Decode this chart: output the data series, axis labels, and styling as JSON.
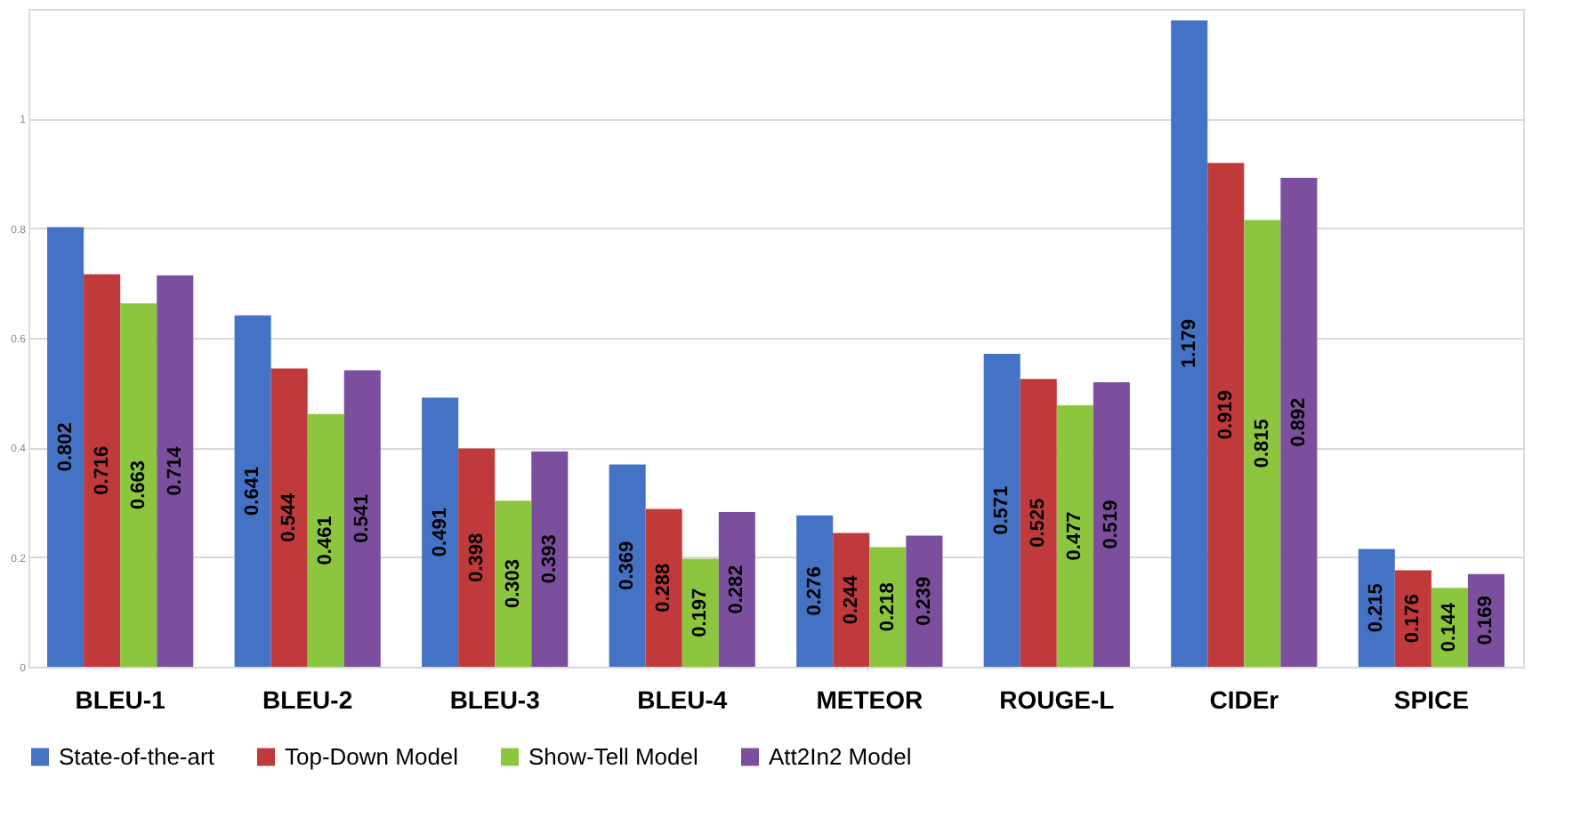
{
  "chart_data": {
    "type": "bar",
    "categories": [
      "BLEU-1",
      "BLEU-2",
      "BLEU-3",
      "BLEU-4",
      "METEOR",
      "ROUGE-L",
      "CIDEr",
      "SPICE"
    ],
    "series": [
      {
        "name": "State-of-the-art",
        "color": "#4472c4",
        "values": [
          0.802,
          0.641,
          0.491,
          0.369,
          0.276,
          0.571,
          1.179,
          0.215
        ]
      },
      {
        "name": "Top-Down Model",
        "color": "#c0393b",
        "values": [
          0.716,
          0.544,
          0.398,
          0.288,
          0.244,
          0.525,
          0.919,
          0.176
        ]
      },
      {
        "name": "Show-Tell Model",
        "color": "#8cc63f",
        "values": [
          0.663,
          0.461,
          0.303,
          0.197,
          0.218,
          0.477,
          0.815,
          0.144
        ]
      },
      {
        "name": "Att2In2 Model",
        "color": "#7b4f9d",
        "values": [
          0.714,
          0.541,
          0.393,
          0.282,
          0.239,
          0.519,
          0.892,
          0.169
        ]
      }
    ],
    "ylim": [
      0,
      1.2
    ],
    "yticks": [
      {
        "value": 0,
        "label": "0"
      },
      0.2,
      0.4,
      0.6,
      0.8,
      {
        "value": 1,
        "label": "1"
      }
    ],
    "grid": "y",
    "legend": "bottom",
    "data_labels": true
  }
}
